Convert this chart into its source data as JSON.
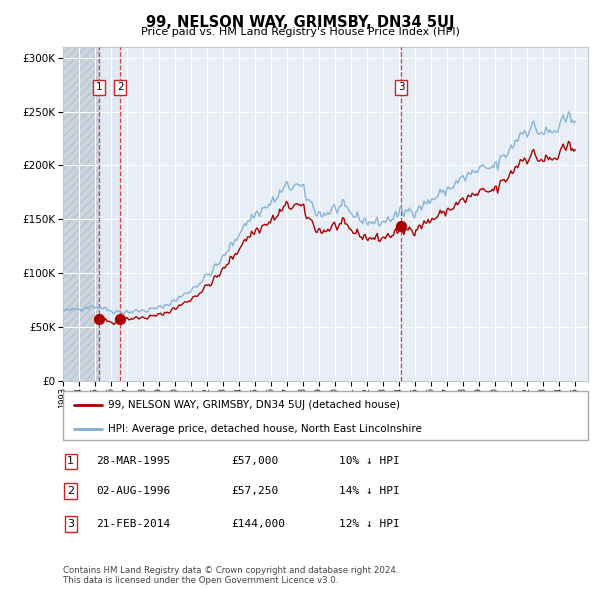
{
  "title": "99, NELSON WAY, GRIMSBY, DN34 5UJ",
  "subtitle": "Price paid vs. HM Land Registry's House Price Index (HPI)",
  "hpi_color": "#7eaed3",
  "price_color": "#aa0000",
  "dashed_color": "#cc2222",
  "plot_bg": "#e8eef5",
  "hatch_facecolor": "#ccd4de",
  "ylim": [
    0,
    310000
  ],
  "xlim_start": 1993.0,
  "xlim_end": 2025.8,
  "yticks": [
    0,
    50000,
    100000,
    150000,
    200000,
    250000,
    300000
  ],
  "xtick_years": [
    1993,
    1994,
    1995,
    1996,
    1997,
    1998,
    1999,
    2000,
    2001,
    2002,
    2003,
    2004,
    2005,
    2006,
    2007,
    2008,
    2009,
    2010,
    2011,
    2012,
    2013,
    2014,
    2015,
    2016,
    2017,
    2018,
    2019,
    2020,
    2021,
    2022,
    2023,
    2024,
    2025
  ],
  "legend_label_red": "99, NELSON WAY, GRIMSBY, DN34 5UJ (detached house)",
  "legend_label_blue": "HPI: Average price, detached house, North East Lincolnshire",
  "table_entries": [
    {
      "num": "1",
      "date": "28-MAR-1995",
      "price": "£57,000",
      "hpi": "10% ↓ HPI"
    },
    {
      "num": "2",
      "date": "02-AUG-1996",
      "price": "£57,250",
      "hpi": "14% ↓ HPI"
    },
    {
      "num": "3",
      "date": "21-FEB-2014",
      "price": "£144,000",
      "hpi": "12% ↓ HPI"
    }
  ],
  "footer": "Contains HM Land Registry data © Crown copyright and database right 2024.\nThis data is licensed under the Open Government Licence v3.0.",
  "sale_dates": [
    1995.23,
    1996.58,
    2014.13
  ],
  "sale_values": [
    57000,
    57250,
    144000
  ],
  "sale_labels": [
    "1",
    "2",
    "3"
  ]
}
